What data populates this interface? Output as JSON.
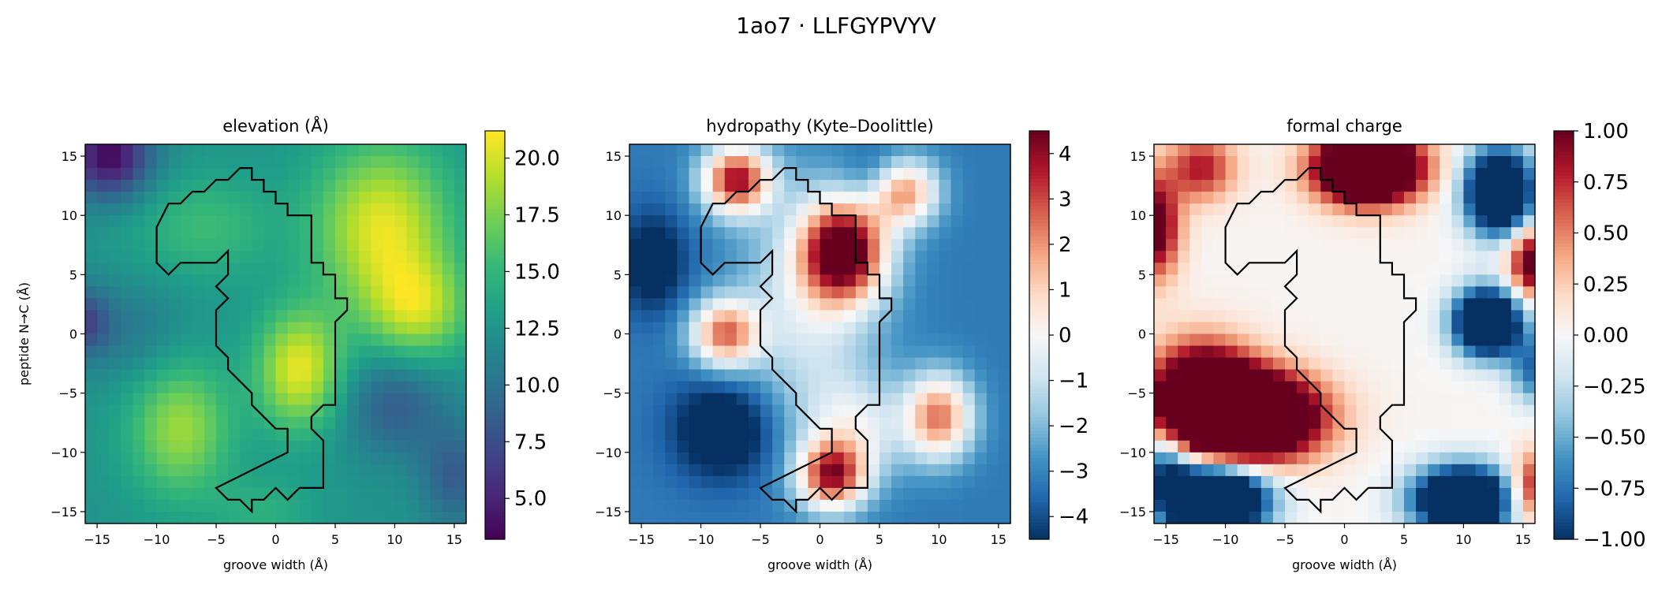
{
  "figure_title": "1ao7 · LLFGYPVYV",
  "colormaps": {
    "viridis": [
      "#440154",
      "#482878",
      "#3e4989",
      "#31688e",
      "#26828e",
      "#1f9e89",
      "#35b779",
      "#6ece58",
      "#b5de2b",
      "#fde725"
    ],
    "rdbu_r": [
      "#053061",
      "#2166ac",
      "#4393c3",
      "#92c5de",
      "#d1e5f0",
      "#f7f7f7",
      "#fddbc7",
      "#f4a582",
      "#d6604d",
      "#b2182b",
      "#67001f"
    ]
  },
  "outline_color": "#000000",
  "chart_data": [
    {
      "type": "heatmap",
      "title": "elevation (Å)",
      "xlabel": "groove width (Å)",
      "ylabel": "peptide N→C (Å)",
      "xlim": [
        -16,
        16
      ],
      "ylim": [
        -16,
        16
      ],
      "xticks": [
        -15,
        -10,
        -5,
        0,
        5,
        10,
        15
      ],
      "yticks": [
        -15,
        -10,
        -5,
        0,
        5,
        10,
        15
      ],
      "grid_size": 32,
      "colormap": "viridis",
      "vmin": 3.2,
      "vmax": 21.2,
      "colorbar_ticks": [
        5.0,
        7.5,
        10.0,
        12.5,
        15.0,
        17.5,
        20.0
      ],
      "colorbar_ticklabels": [
        "5.0",
        "7.5",
        "10.0",
        "12.5",
        "15.0",
        "17.5",
        "20.0"
      ],
      "baseline": 12.5,
      "blobs": [
        {
          "x": -14,
          "y": 15,
          "amp": -9,
          "sx": 2.5,
          "sy": 2.5
        },
        {
          "x": -16,
          "y": 1,
          "amp": -5,
          "sx": 1.5,
          "sy": 2
        },
        {
          "x": 9,
          "y": 9,
          "amp": 8,
          "sx": 4,
          "sy": 5
        },
        {
          "x": 12,
          "y": 2,
          "amp": 6,
          "sx": 3,
          "sy": 3
        },
        {
          "x": 2,
          "y": -3,
          "amp": 8,
          "sx": 2.5,
          "sy": 3.5
        },
        {
          "x": -8,
          "y": -8,
          "amp": 6,
          "sx": 3,
          "sy": 4
        },
        {
          "x": -6,
          "y": 9,
          "amp": 3,
          "sx": 4,
          "sy": 3
        },
        {
          "x": -1,
          "y": -15,
          "amp": 2,
          "sx": 3,
          "sy": 2
        },
        {
          "x": 10,
          "y": -6,
          "amp": -4,
          "sx": 3,
          "sy": 3
        },
        {
          "x": -12,
          "y": 0,
          "amp": -2,
          "sx": 3,
          "sy": 3
        },
        {
          "x": 15,
          "y": -12,
          "amp": -4,
          "sx": 2,
          "sy": 3
        }
      ]
    },
    {
      "type": "heatmap",
      "title": "hydropathy (Kyte–Doolittle)",
      "xlabel": "groove width (Å)",
      "ylabel": "",
      "xlim": [
        -16,
        16
      ],
      "ylim": [
        -16,
        16
      ],
      "xticks": [
        -15,
        -10,
        -5,
        0,
        5,
        10,
        15
      ],
      "yticks": [
        -15,
        -10,
        -5,
        0,
        5,
        10,
        15
      ],
      "grid_size": 32,
      "colormap": "rdbu_r",
      "vmin": -4.5,
      "vmax": 4.5,
      "colorbar_ticks": [
        -4,
        -3,
        -2,
        -1,
        0,
        1,
        2,
        3,
        4
      ],
      "colorbar_ticklabels": [
        "−4",
        "−3",
        "−2",
        "−1",
        "0",
        "1",
        "2",
        "3",
        "4"
      ],
      "baseline": -3.2,
      "blobs": [
        {
          "x": -7,
          "y": 13,
          "amp": 7,
          "sx": 2,
          "sy": 2
        },
        {
          "x": 2,
          "y": 7,
          "amp": 8,
          "sx": 2.5,
          "sy": 3
        },
        {
          "x": 7,
          "y": 12,
          "amp": 5.5,
          "sx": 2,
          "sy": 2
        },
        {
          "x": -8,
          "y": 0,
          "amp": 5.5,
          "sx": 2,
          "sy": 2
        },
        {
          "x": 10,
          "y": -7,
          "amp": 5.5,
          "sx": 2,
          "sy": 2.5
        },
        {
          "x": 1,
          "y": -12,
          "amp": 6.5,
          "sx": 2,
          "sy": 2
        },
        {
          "x": -1,
          "y": 2,
          "amp": 2.5,
          "sx": 4,
          "sy": 7
        },
        {
          "x": 3,
          "y": -8,
          "amp": 2.5,
          "sx": 3,
          "sy": 3
        },
        {
          "x": -8,
          "y": -8,
          "amp": -2.5,
          "sx": 3,
          "sy": 3
        },
        {
          "x": 5,
          "y": 13,
          "amp": -1.5,
          "sx": 2,
          "sy": 2
        },
        {
          "x": -14,
          "y": 6,
          "amp": -2,
          "sx": 2,
          "sy": 3
        }
      ]
    },
    {
      "type": "heatmap",
      "title": "formal charge",
      "xlabel": "groove width (Å)",
      "ylabel": "",
      "xlim": [
        -16,
        16
      ],
      "ylim": [
        -16,
        16
      ],
      "xticks": [
        -15,
        -10,
        -5,
        0,
        5,
        10,
        15
      ],
      "yticks": [
        -15,
        -10,
        -5,
        0,
        5,
        10,
        15
      ],
      "grid_size": 32,
      "colormap": "rdbu_r",
      "vmin": -1,
      "vmax": 1,
      "colorbar_ticks": [
        -1.0,
        -0.75,
        -0.5,
        -0.25,
        0.0,
        0.25,
        0.5,
        0.75,
        1.0
      ],
      "colorbar_ticklabels": [
        "−1.00",
        "−0.75",
        "−0.50",
        "−0.25",
        "0.00",
        "0.25",
        "0.50",
        "0.75",
        "1.00"
      ],
      "baseline": 0.02,
      "blobs": [
        {
          "x": -8,
          "y": -7,
          "amp": 2.5,
          "sx": 4,
          "sy": 2.5
        },
        {
          "x": -12,
          "y": -5,
          "amp": 1.5,
          "sx": 3,
          "sy": 3
        },
        {
          "x": 2,
          "y": 14,
          "amp": 2.5,
          "sx": 3,
          "sy": 2
        },
        {
          "x": -16,
          "y": 9,
          "amp": 1.2,
          "sx": 1.5,
          "sy": 3
        },
        {
          "x": -12,
          "y": 14,
          "amp": 0.8,
          "sx": 2,
          "sy": 2
        },
        {
          "x": 16,
          "y": 6,
          "amp": 1.3,
          "sx": 1.5,
          "sy": 2
        },
        {
          "x": 16,
          "y": -13,
          "amp": 1.0,
          "sx": 1.5,
          "sy": 2
        },
        {
          "x": -11,
          "y": -14,
          "amp": -2.5,
          "sx": 3,
          "sy": 2
        },
        {
          "x": 10,
          "y": -14,
          "amp": -2.0,
          "sx": 3,
          "sy": 2
        },
        {
          "x": 13,
          "y": 12,
          "amp": -2.0,
          "sx": 2,
          "sy": 2.5
        },
        {
          "x": 12,
          "y": 1,
          "amp": -2.0,
          "sx": 2,
          "sy": 2
        },
        {
          "x": 16,
          "y": -3,
          "amp": -0.8,
          "sx": 1.5,
          "sy": 2
        },
        {
          "x": -15,
          "y": -11,
          "amp": -0.8,
          "sx": 1.5,
          "sy": 2
        }
      ]
    }
  ],
  "peptide_outline": [
    [
      -3,
      14
    ],
    [
      -2,
      14
    ],
    [
      -2,
      13
    ],
    [
      -1,
      13
    ],
    [
      -1,
      12
    ],
    [
      0,
      12
    ],
    [
      0,
      11
    ],
    [
      1,
      11
    ],
    [
      1,
      10
    ],
    [
      3,
      10
    ],
    [
      3,
      9
    ],
    [
      3,
      6
    ],
    [
      4,
      6
    ],
    [
      4,
      5
    ],
    [
      5,
      5
    ],
    [
      5,
      3
    ],
    [
      6,
      3
    ],
    [
      6,
      2
    ],
    [
      5,
      1
    ],
    [
      5,
      -6
    ],
    [
      4,
      -6
    ],
    [
      3,
      -7
    ],
    [
      3,
      -8
    ],
    [
      4,
      -9
    ],
    [
      4,
      -13
    ],
    [
      2,
      -13
    ],
    [
      1,
      -14
    ],
    [
      0,
      -13
    ],
    [
      -1,
      -14
    ],
    [
      -2,
      -14
    ],
    [
      -2,
      -15
    ],
    [
      -3,
      -14
    ],
    [
      -4,
      -14
    ],
    [
      -5,
      -13
    ],
    [
      -3,
      -12
    ],
    [
      -1,
      -11
    ],
    [
      1,
      -10
    ],
    [
      1,
      -8
    ],
    [
      0,
      -8
    ],
    [
      -1,
      -7
    ],
    [
      -2,
      -6
    ],
    [
      -2,
      -5
    ],
    [
      -3,
      -4
    ],
    [
      -4,
      -3
    ],
    [
      -4,
      -2
    ],
    [
      -5,
      -1
    ],
    [
      -5,
      1
    ],
    [
      -5,
      2
    ],
    [
      -4,
      3
    ],
    [
      -5,
      4
    ],
    [
      -4,
      5
    ],
    [
      -4,
      6
    ],
    [
      -4,
      7
    ],
    [
      -5,
      6
    ],
    [
      -6,
      6
    ],
    [
      -8,
      6
    ],
    [
      -9,
      5
    ],
    [
      -10,
      6
    ],
    [
      -10,
      9
    ],
    [
      -9,
      11
    ],
    [
      -8,
      11
    ],
    [
      -7,
      12
    ],
    [
      -6,
      12
    ],
    [
      -5,
      13
    ],
    [
      -4,
      13
    ],
    [
      -3,
      14
    ]
  ]
}
